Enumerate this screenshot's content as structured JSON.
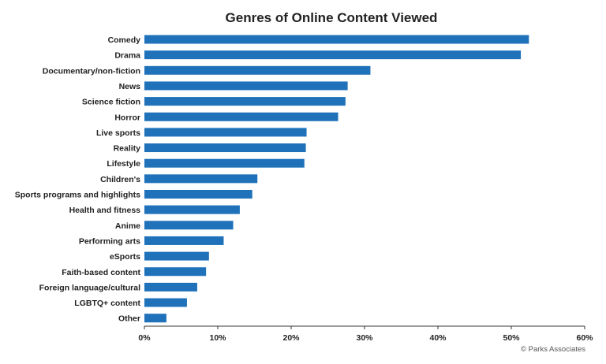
{
  "chart_data": {
    "type": "bar",
    "orientation": "horizontal",
    "title": "Genres of Online Content Viewed",
    "categories": [
      "Comedy",
      "Drama",
      "Documentary/non-fiction",
      "News",
      "Science fiction",
      "Horror",
      "Live sports",
      "Reality",
      "Lifestyle",
      "Children's",
      "Sports programs and highlights",
      "Health and fitness",
      "Anime",
      "Performing arts",
      "eSports",
      "Faith-based content",
      "Foreign language/cultural",
      "LGBTQ+ content",
      "Other"
    ],
    "values": [
      52.4,
      51.3,
      30.8,
      27.7,
      27.4,
      26.4,
      22.1,
      22.0,
      21.8,
      15.4,
      14.7,
      13.0,
      12.1,
      10.8,
      8.8,
      8.4,
      7.2,
      5.8,
      3.0
    ],
    "xlim": [
      0,
      60
    ],
    "xticks": [
      0,
      10,
      20,
      30,
      40,
      50,
      60
    ],
    "xtick_labels": [
      "0%",
      "10%",
      "20%",
      "30%",
      "40%",
      "50%",
      "60%"
    ],
    "bar_color": "#1F72BA",
    "grid": false,
    "credit": "© Parks Associates"
  }
}
